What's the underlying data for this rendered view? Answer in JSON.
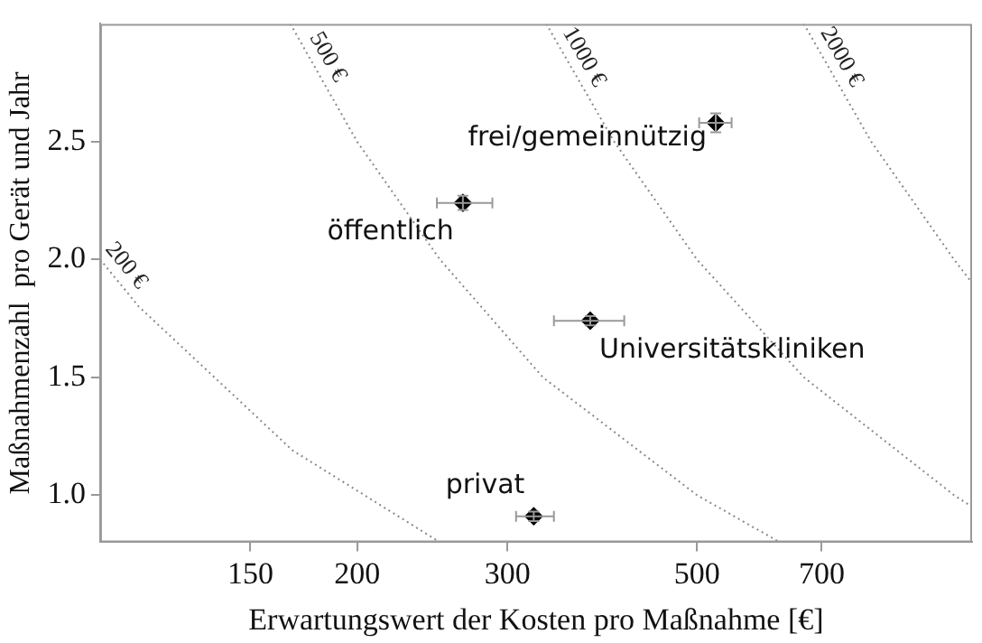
{
  "chart_data": {
    "type": "scatter",
    "xlabel": "Erwartungswert der Kosten pro Maßnahme [€]",
    "ylabel": "Maßnahmenzahl  pro Gerät und Jahr",
    "log": "x",
    "xlim": [
      100,
      1050
    ],
    "ylim": [
      0.8,
      3.0
    ],
    "xticks": [
      150,
      200,
      300,
      500,
      700
    ],
    "yticks": [
      {
        "value": 1,
        "label": "1.0"
      },
      {
        "value": 1.5,
        "label": "1.5"
      },
      {
        "value": 2,
        "label": "2.0"
      },
      {
        "value": 2.5,
        "label": "2.5"
      }
    ],
    "grid": false,
    "legend": false,
    "series": [
      {
        "type": "line",
        "name": "200 €",
        "color": "#888888",
        "line_style": "dotted",
        "marker": "none",
        "x": [
          100,
          111,
          168,
          250
        ],
        "values": [
          2.0,
          1.8,
          1.19,
          0.8
        ]
      },
      {
        "type": "line",
        "name": "500 €",
        "color": "#888888",
        "line_style": "dotted",
        "marker": "none",
        "x": [
          167,
          200,
          250,
          330,
          500,
          625
        ],
        "values": [
          3.0,
          2.5,
          2.0,
          1.5,
          1.0,
          0.8
        ]
      },
      {
        "type": "line",
        "name": "1000 €",
        "color": "#888888",
        "line_style": "dotted",
        "marker": "none",
        "x": [
          333,
          400,
          500,
          667,
          1000,
          1050
        ],
        "values": [
          3.0,
          2.5,
          2.0,
          1.5,
          1.0,
          0.95
        ]
      },
      {
        "type": "line",
        "name": "2000 €",
        "color": "#888888",
        "line_style": "dotted",
        "marker": "none",
        "x": [
          667,
          800,
          1000,
          1050
        ],
        "values": [
          3.0,
          2.5,
          2.0,
          1.9
        ]
      },
      {
        "color": "#000000",
        "marker": "diamond",
        "x": [
          526,
          266,
          375,
          322
        ],
        "values": [
          2.58,
          2.24,
          1.74,
          0.91
        ],
        "xerrors": [
          [
            503,
            549
          ],
          [
            248,
            288
          ],
          [
            340,
            411
          ],
          [
            307,
            340
          ]
        ],
        "errors": [
          0.04,
          0.03,
          0.02,
          0.02
        ]
      }
    ],
    "annotations": [
      {
        "text": "frei/gemeinnützig",
        "x": 526,
        "y": 2.58
      },
      {
        "text": "öffentlich",
        "x": 266,
        "y": 2.24
      },
      {
        "text": "Universitätskliniken",
        "x": 375,
        "y": 1.74
      },
      {
        "text": "privat",
        "x": 322,
        "y": 0.91
      }
    ]
  }
}
